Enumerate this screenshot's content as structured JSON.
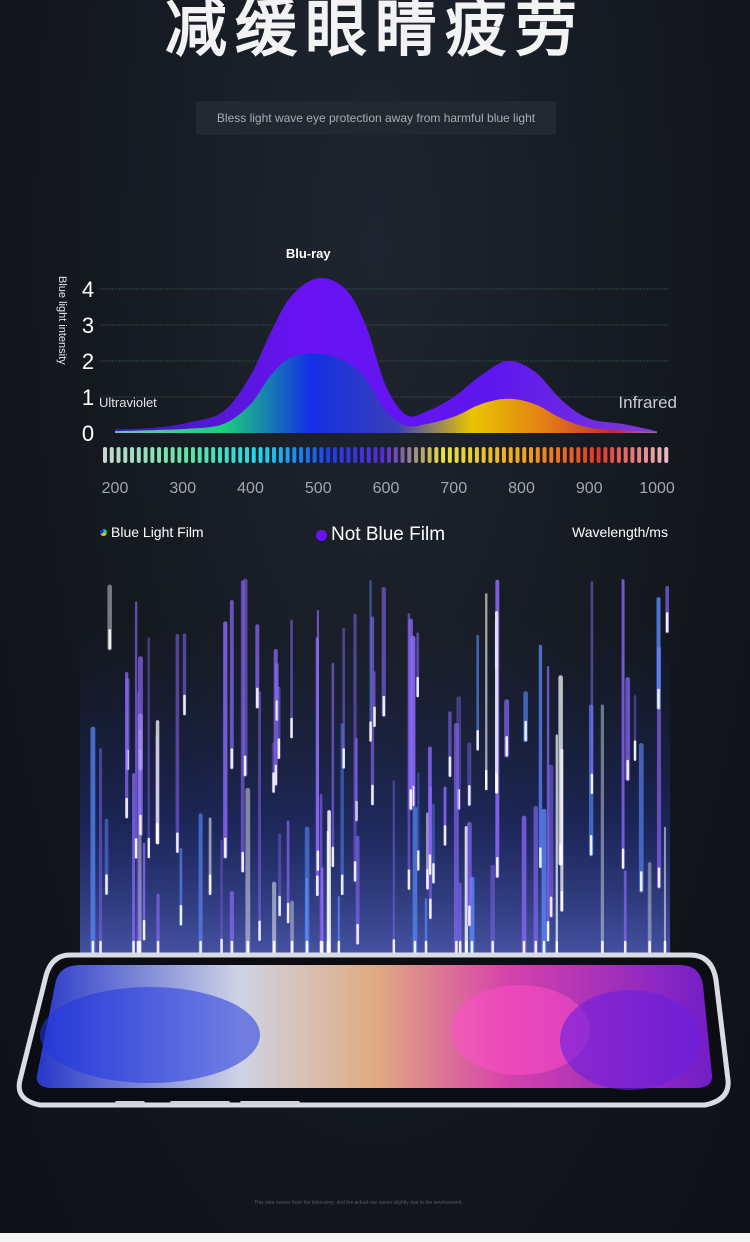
{
  "page": {
    "title": "减缓眼睛疲劳",
    "subtitle": "Bless light wave eye protection away from harmful blue light",
    "footnote": "This data comes from the laboratory, and the actual use varies slightly due to the environment."
  },
  "legend": {
    "film": "Blue Light Film",
    "not_film": "Not Blue Film",
    "unit": "Wavelength/ms"
  },
  "colors": {
    "not_film": "#6a12f5",
    "film_left": "#1ad07a",
    "film_mid": "#1430e6",
    "film_right": "#e9c400"
  },
  "chart_data": {
    "type": "area",
    "ylabel": "Blue light intensity",
    "xlabel": "Wavelength/ms",
    "x_ticks": [
      200,
      300,
      400,
      500,
      600,
      700,
      800,
      900,
      1000
    ],
    "y_ticks": [
      0,
      1,
      2,
      3,
      4
    ],
    "xlim": [
      200,
      1000
    ],
    "ylim": [
      0,
      4.4
    ],
    "annotations": [
      {
        "text": "Blu-ray",
        "x": 500,
        "y": 4.7
      },
      {
        "text": "Ultraviolet",
        "x": 220,
        "y": 0.85
      },
      {
        "text": "Infrared",
        "x": 1000,
        "y": 0.85
      }
    ],
    "series": [
      {
        "name": "Not Blue Film",
        "x": [
          200,
          260,
          310,
          360,
          400,
          430,
          460,
          500,
          540,
          570,
          600,
          630,
          660,
          700,
          740,
          780,
          820,
          860,
          900,
          950,
          1000
        ],
        "values": [
          0.1,
          0.15,
          0.3,
          0.6,
          1.6,
          2.8,
          3.8,
          4.3,
          4.0,
          3.0,
          1.3,
          0.5,
          0.6,
          1.0,
          1.6,
          2.0,
          1.7,
          0.9,
          0.4,
          0.25,
          0.05
        ]
      },
      {
        "name": "Blue Light Film",
        "x": [
          200,
          260,
          310,
          360,
          400,
          430,
          460,
          500,
          540,
          570,
          600,
          630,
          660,
          700,
          740,
          780,
          820,
          860,
          900,
          950,
          1000
        ],
        "values": [
          0.05,
          0.08,
          0.12,
          0.25,
          0.8,
          1.6,
          2.1,
          2.2,
          2.0,
          1.5,
          0.6,
          0.2,
          0.25,
          0.45,
          0.8,
          0.95,
          0.8,
          0.4,
          0.15,
          0.08,
          0.02
        ]
      }
    ],
    "grid": true
  }
}
